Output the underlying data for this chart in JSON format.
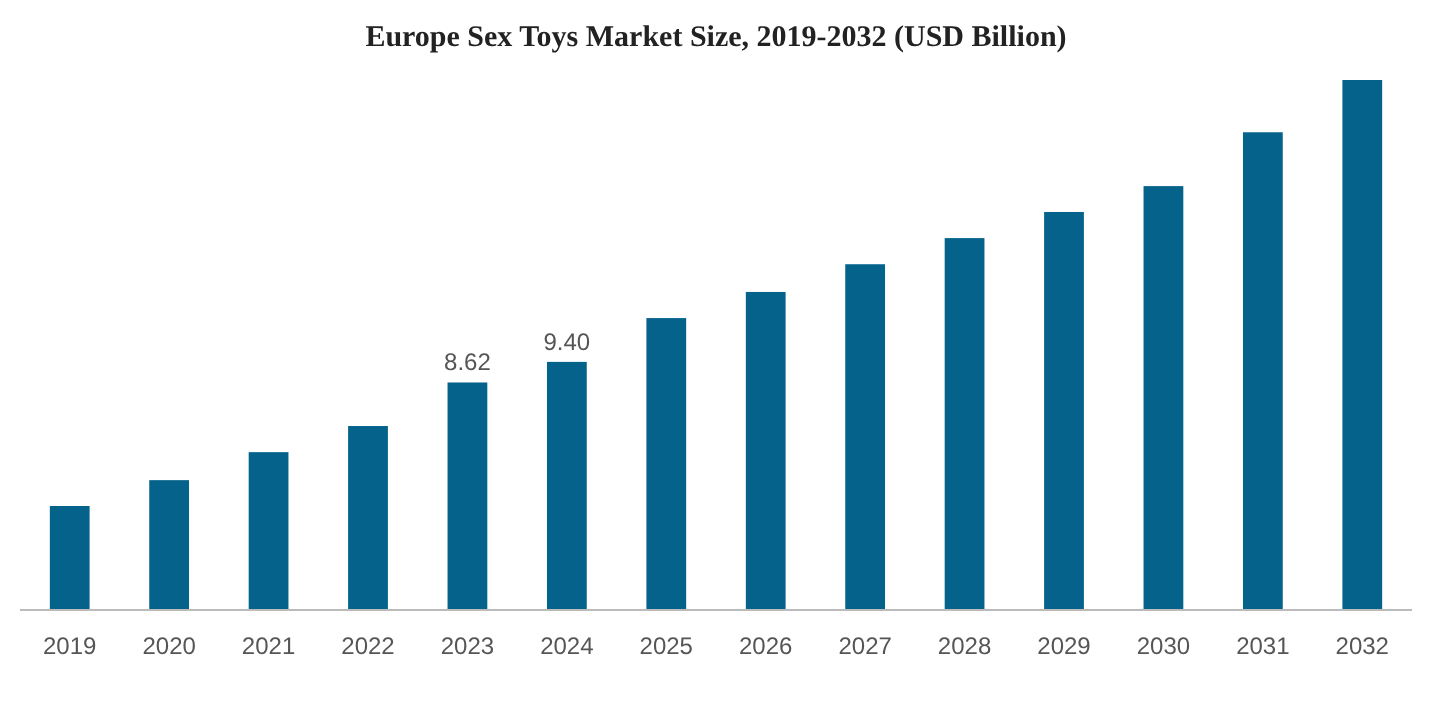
{
  "chart_data": {
    "type": "bar",
    "title": "Europe Sex Toys Market Size, 2019-2032 (USD Billion)",
    "categories": [
      "2019",
      "2020",
      "2021",
      "2022",
      "2023",
      "2024",
      "2025",
      "2026",
      "2027",
      "2028",
      "2029",
      "2030",
      "2031",
      "2032"
    ],
    "values": [
      3.94,
      4.92,
      5.98,
      6.97,
      8.62,
      9.4,
      11.06,
      12.05,
      13.1,
      14.09,
      15.08,
      16.06,
      18.1,
      20.08
    ],
    "value_labels": [
      null,
      null,
      null,
      null,
      "8.62",
      "9.40",
      null,
      null,
      null,
      null,
      null,
      null,
      null,
      null
    ],
    "color": "#05628a"
  }
}
